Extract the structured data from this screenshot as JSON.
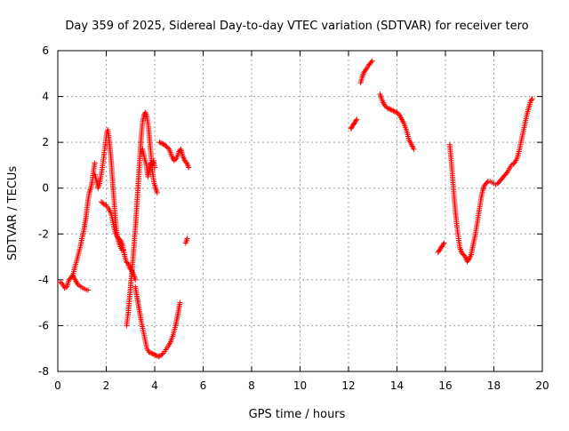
{
  "chart_data": {
    "type": "scatter",
    "title": "Day 359 of 2025, Sidereal Day-to-day VTEC variation (SDTVAR) for receiver tero",
    "xlabel": "GPS time / hours",
    "ylabel": "SDTVAR / TECUs",
    "xlim": [
      0,
      20
    ],
    "ylim": [
      -8,
      6
    ],
    "xticks": [
      0,
      2,
      4,
      6,
      8,
      10,
      12,
      14,
      16,
      18,
      20
    ],
    "yticks": [
      -8,
      -6,
      -4,
      -2,
      0,
      2,
      4,
      6
    ],
    "grid": true,
    "marker": "+",
    "color": "#ff0000",
    "series": [
      {
        "name": "SDTVAR",
        "segments": [
          [
            [
              0.1,
              -4.1
            ],
            [
              0.2,
              -4.2
            ],
            [
              0.28,
              -4.35
            ],
            [
              0.38,
              -4.3
            ],
            [
              0.46,
              -4.0
            ],
            [
              0.55,
              -3.9
            ],
            [
              0.62,
              -3.8
            ],
            [
              0.72,
              -4.0
            ],
            [
              0.82,
              -4.2
            ],
            [
              0.95,
              -4.3
            ],
            [
              1.1,
              -4.4
            ],
            [
              1.25,
              -4.45
            ]
          ],
          [
            [
              0.62,
              -3.8
            ],
            [
              0.72,
              -3.4
            ],
            [
              0.82,
              -3.0
            ],
            [
              0.92,
              -2.6
            ],
            [
              1.0,
              -2.2
            ],
            [
              1.08,
              -1.8
            ],
            [
              1.16,
              -1.3
            ],
            [
              1.24,
              -0.6
            ],
            [
              1.3,
              -0.2
            ],
            [
              1.36,
              0.0
            ],
            [
              1.42,
              0.3
            ],
            [
              1.48,
              0.8
            ],
            [
              1.53,
              1.1
            ]
          ],
          [
            [
              1.53,
              0.6
            ],
            [
              1.6,
              0.3
            ],
            [
              1.66,
              0.0
            ],
            [
              1.72,
              0.2
            ],
            [
              1.78,
              0.5
            ],
            [
              1.84,
              0.9
            ],
            [
              1.9,
              1.4
            ],
            [
              1.96,
              1.9
            ],
            [
              2.02,
              2.4
            ],
            [
              2.06,
              2.55
            ],
            [
              2.1,
              2.3
            ],
            [
              2.16,
              1.7
            ],
            [
              2.22,
              1.0
            ],
            [
              2.28,
              0.0
            ],
            [
              2.34,
              -0.8
            ],
            [
              2.4,
              -1.6
            ],
            [
              2.46,
              -2.1
            ],
            [
              2.52,
              -2.4
            ],
            [
              2.58,
              -2.55
            ],
            [
              2.64,
              -2.7
            ],
            [
              2.7,
              -2.7
            ]
          ],
          [
            [
              1.8,
              -0.6
            ],
            [
              1.9,
              -0.7
            ],
            [
              2.0,
              -0.75
            ],
            [
              2.1,
              -0.9
            ],
            [
              2.2,
              -1.1
            ],
            [
              2.28,
              -1.5
            ],
            [
              2.36,
              -1.9
            ],
            [
              2.44,
              -2.1
            ],
            [
              2.52,
              -2.2
            ],
            [
              2.6,
              -2.3
            ],
            [
              2.68,
              -2.5
            ],
            [
              2.75,
              -2.9
            ],
            [
              2.82,
              -3.2
            ],
            [
              2.9,
              -3.3
            ],
            [
              2.98,
              -3.5
            ],
            [
              3.06,
              -3.6
            ],
            [
              3.14,
              -3.8
            ],
            [
              3.2,
              -4.0
            ]
          ],
          [
            [
              2.84,
              -6.0
            ],
            [
              2.9,
              -5.5
            ],
            [
              2.96,
              -4.8
            ],
            [
              3.02,
              -4.1
            ],
            [
              3.08,
              -3.4
            ],
            [
              3.14,
              -2.6
            ],
            [
              3.2,
              -1.8
            ],
            [
              3.26,
              -0.8
            ],
            [
              3.32,
              0.2
            ],
            [
              3.38,
              1.2
            ],
            [
              3.44,
              2.2
            ],
            [
              3.5,
              2.9
            ],
            [
              3.56,
              3.2
            ],
            [
              3.62,
              3.3
            ],
            [
              3.68,
              3.1
            ],
            [
              3.74,
              2.7
            ],
            [
              3.8,
              2.0
            ],
            [
              3.86,
              1.3
            ],
            [
              3.92,
              0.6
            ],
            [
              3.98,
              0.2
            ],
            [
              4.04,
              0.0
            ],
            [
              4.1,
              -0.2
            ]
          ],
          [
            [
              3.2,
              -4.3
            ],
            [
              3.28,
              -4.8
            ],
            [
              3.36,
              -5.3
            ],
            [
              3.44,
              -5.8
            ],
            [
              3.52,
              -6.2
            ],
            [
              3.6,
              -6.6
            ],
            [
              3.68,
              -7.0
            ],
            [
              3.76,
              -7.15
            ],
            [
              3.86,
              -7.2
            ],
            [
              3.96,
              -7.25
            ],
            [
              4.06,
              -7.3
            ],
            [
              4.16,
              -7.35
            ],
            [
              4.26,
              -7.3
            ],
            [
              4.36,
              -7.2
            ],
            [
              4.46,
              -7.05
            ],
            [
              4.56,
              -6.9
            ],
            [
              4.66,
              -6.7
            ],
            [
              4.76,
              -6.4
            ],
            [
              4.86,
              -6.0
            ],
            [
              4.96,
              -5.5
            ],
            [
              5.04,
              -5.0
            ]
          ],
          [
            [
              3.5,
              1.7
            ],
            [
              3.58,
              1.3
            ],
            [
              3.66,
              1.0
            ],
            [
              3.72,
              0.5
            ],
            [
              3.78,
              0.8
            ],
            [
              3.84,
              1.1
            ],
            [
              3.9,
              1.0
            ],
            [
              3.96,
              1.2
            ],
            [
              4.0,
              0.9
            ]
          ],
          [
            [
              4.2,
              2.0
            ],
            [
              4.3,
              1.95
            ],
            [
              4.4,
              1.9
            ],
            [
              4.5,
              1.8
            ],
            [
              4.6,
              1.7
            ],
            [
              4.7,
              1.4
            ],
            [
              4.8,
              1.2
            ],
            [
              4.9,
              1.3
            ],
            [
              5.0,
              1.6
            ],
            [
              5.08,
              1.7
            ],
            [
              5.16,
              1.4
            ],
            [
              5.24,
              1.2
            ],
            [
              5.32,
              1.1
            ],
            [
              5.4,
              0.9
            ]
          ],
          [
            [
              5.28,
              -2.4
            ],
            [
              5.34,
              -2.2
            ]
          ],
          [
            [
              12.1,
              2.6
            ],
            [
              12.16,
              2.7
            ],
            [
              12.22,
              2.8
            ],
            [
              12.28,
              2.9
            ],
            [
              12.34,
              3.0
            ]
          ],
          [
            [
              12.5,
              4.6
            ],
            [
              12.58,
              4.9
            ],
            [
              12.66,
              5.1
            ],
            [
              12.74,
              5.2
            ],
            [
              12.82,
              5.35
            ],
            [
              12.9,
              5.45
            ],
            [
              12.98,
              5.55
            ]
          ],
          [
            [
              13.3,
              4.1
            ],
            [
              13.4,
              3.8
            ],
            [
              13.5,
              3.6
            ],
            [
              13.6,
              3.5
            ],
            [
              13.7,
              3.45
            ],
            [
              13.8,
              3.4
            ],
            [
              13.9,
              3.35
            ],
            [
              14.0,
              3.3
            ],
            [
              14.1,
              3.2
            ],
            [
              14.2,
              3.0
            ],
            [
              14.3,
              2.8
            ],
            [
              14.4,
              2.5
            ],
            [
              14.5,
              2.1
            ],
            [
              14.6,
              1.9
            ],
            [
              14.7,
              1.7
            ]
          ],
          [
            [
              15.7,
              -2.8
            ],
            [
              15.76,
              -2.7
            ],
            [
              15.82,
              -2.6
            ],
            [
              15.88,
              -2.5
            ],
            [
              15.94,
              -2.4
            ]
          ],
          [
            [
              16.18,
              1.9
            ],
            [
              16.24,
              1.2
            ],
            [
              16.3,
              0.4
            ],
            [
              16.36,
              -0.4
            ],
            [
              16.42,
              -1.1
            ],
            [
              16.48,
              -1.7
            ],
            [
              16.54,
              -2.2
            ],
            [
              16.6,
              -2.6
            ],
            [
              16.66,
              -2.8
            ],
            [
              16.74,
              -2.9
            ],
            [
              16.82,
              -3.0
            ],
            [
              16.9,
              -3.2
            ],
            [
              16.98,
              -3.1
            ],
            [
              17.06,
              -2.9
            ],
            [
              17.12,
              -2.6
            ],
            [
              17.18,
              -2.3
            ],
            [
              17.24,
              -2.0
            ],
            [
              17.3,
              -1.6
            ],
            [
              17.36,
              -1.2
            ],
            [
              17.42,
              -0.8
            ],
            [
              17.48,
              -0.4
            ],
            [
              17.54,
              -0.1
            ],
            [
              17.6,
              0.1
            ],
            [
              17.68,
              0.2
            ],
            [
              17.76,
              0.3
            ],
            [
              17.84,
              0.3
            ],
            [
              17.92,
              0.25
            ],
            [
              18.0,
              0.2
            ],
            [
              18.08,
              0.15
            ],
            [
              18.16,
              0.2
            ],
            [
              18.24,
              0.3
            ],
            [
              18.32,
              0.4
            ],
            [
              18.4,
              0.5
            ],
            [
              18.48,
              0.6
            ],
            [
              18.56,
              0.7
            ],
            [
              18.64,
              0.85
            ],
            [
              18.72,
              1.0
            ],
            [
              18.8,
              1.05
            ],
            [
              18.88,
              1.15
            ],
            [
              18.96,
              1.3
            ],
            [
              19.04,
              1.6
            ],
            [
              19.12,
              2.0
            ],
            [
              19.2,
              2.4
            ],
            [
              19.28,
              2.8
            ],
            [
              19.36,
              3.2
            ],
            [
              19.44,
              3.5
            ],
            [
              19.52,
              3.8
            ],
            [
              19.58,
              3.9
            ]
          ]
        ]
      }
    ]
  }
}
